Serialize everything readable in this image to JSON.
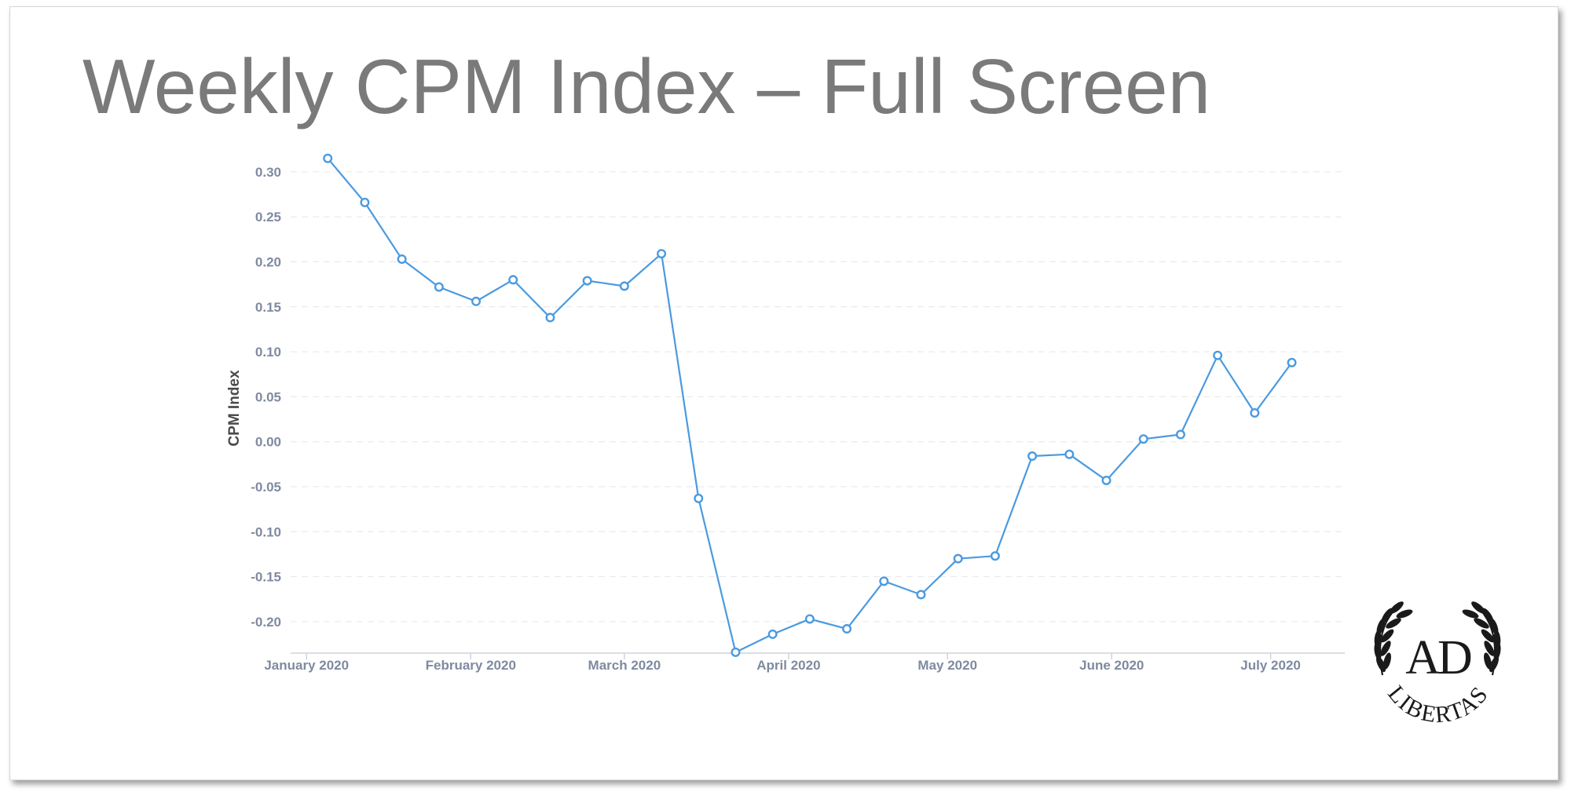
{
  "slide": {
    "title": "Weekly CPM Index – Full Screen"
  },
  "logo": {
    "monogram": "AD",
    "word": "LIBERTAS",
    "color": "#1a1a1a"
  },
  "chart_data": {
    "type": "line",
    "title": "",
    "xlabel": "",
    "ylabel": "CPM Index",
    "grid": true,
    "legend": "none",
    "colors": {
      "line": "#4a9ae0",
      "marker_fill": "#ffffff",
      "grid": "#e6e6e6",
      "tick_text": "#7f8aa0",
      "axis": "#cfd4dc",
      "label_text": "#4a4a4a"
    },
    "ylim": [
      -0.235,
      0.32
    ],
    "xlim": [
      "2019-12-29",
      "2020-07-15"
    ],
    "yticks": [
      {
        "value": 0.3,
        "label": "0.30"
      },
      {
        "value": 0.25,
        "label": "0.25"
      },
      {
        "value": 0.2,
        "label": "0.20"
      },
      {
        "value": 0.15,
        "label": "0.15"
      },
      {
        "value": 0.1,
        "label": "0.10"
      },
      {
        "value": 0.05,
        "label": "0.05"
      },
      {
        "value": 0.0,
        "label": "0.00"
      },
      {
        "value": -0.05,
        "label": "-0.05"
      },
      {
        "value": -0.1,
        "label": "-0.10"
      },
      {
        "value": -0.15,
        "label": "-0.15"
      },
      {
        "value": -0.2,
        "label": "-0.20"
      }
    ],
    "xticks": [
      {
        "date": "2020-01-01",
        "label": "January 2020"
      },
      {
        "date": "2020-02-01",
        "label": "February 2020"
      },
      {
        "date": "2020-03-01",
        "label": "March 2020"
      },
      {
        "date": "2020-04-01",
        "label": "April 2020"
      },
      {
        "date": "2020-05-01",
        "label": "May 2020"
      },
      {
        "date": "2020-06-01",
        "label": "June 2020"
      },
      {
        "date": "2020-07-01",
        "label": "July 2020"
      }
    ],
    "series": [
      {
        "points": [
          {
            "x": "2020-01-05",
            "y": 0.315
          },
          {
            "x": "2020-01-12",
            "y": 0.266
          },
          {
            "x": "2020-01-19",
            "y": 0.203
          },
          {
            "x": "2020-01-26",
            "y": 0.172
          },
          {
            "x": "2020-02-02",
            "y": 0.156
          },
          {
            "x": "2020-02-09",
            "y": 0.18
          },
          {
            "x": "2020-02-16",
            "y": 0.138
          },
          {
            "x": "2020-02-23",
            "y": 0.179
          },
          {
            "x": "2020-03-01",
            "y": 0.173
          },
          {
            "x": "2020-03-08",
            "y": 0.209
          },
          {
            "x": "2020-03-15",
            "y": -0.063
          },
          {
            "x": "2020-03-22",
            "y": -0.234
          },
          {
            "x": "2020-03-29",
            "y": -0.214
          },
          {
            "x": "2020-04-05",
            "y": -0.197
          },
          {
            "x": "2020-04-12",
            "y": -0.208
          },
          {
            "x": "2020-04-19",
            "y": -0.155
          },
          {
            "x": "2020-04-26",
            "y": -0.17
          },
          {
            "x": "2020-05-03",
            "y": -0.13
          },
          {
            "x": "2020-05-10",
            "y": -0.127
          },
          {
            "x": "2020-05-17",
            "y": -0.016
          },
          {
            "x": "2020-05-24",
            "y": -0.014
          },
          {
            "x": "2020-05-31",
            "y": -0.043
          },
          {
            "x": "2020-06-07",
            "y": 0.003
          },
          {
            "x": "2020-06-14",
            "y": 0.008
          },
          {
            "x": "2020-06-21",
            "y": 0.096
          },
          {
            "x": "2020-06-28",
            "y": 0.032
          },
          {
            "x": "2020-07-05",
            "y": 0.088
          }
        ]
      }
    ]
  }
}
